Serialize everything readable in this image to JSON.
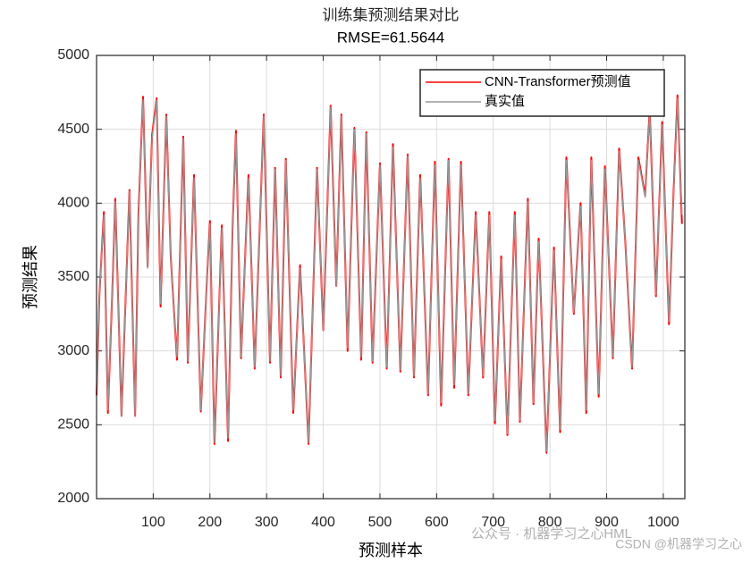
{
  "chart_data": {
    "type": "line",
    "title": "训练集预测结果对比",
    "subtitle": "RMSE=61.5644",
    "xlabel": "预测样本",
    "ylabel": "预测结果",
    "x": [
      0,
      5,
      13,
      20,
      28,
      33,
      44,
      58,
      68,
      74,
      82,
      90,
      98,
      106,
      113,
      123,
      131,
      142,
      153,
      161,
      172,
      184,
      195,
      200,
      208,
      221,
      232,
      240,
      246,
      255,
      268,
      279,
      295,
      306,
      315,
      325,
      334,
      347,
      359,
      374,
      389,
      400,
      413,
      423,
      432,
      443,
      455,
      467,
      476,
      487,
      500,
      512,
      523,
      536,
      549,
      560,
      571,
      585,
      597,
      608,
      621,
      631,
      643,
      656,
      669,
      682,
      693,
      703,
      714,
      725,
      738,
      747,
      761,
      771,
      780,
      794,
      807,
      818,
      829,
      842,
      854,
      864,
      873,
      886,
      897,
      911,
      922,
      933,
      945,
      956,
      968,
      976,
      987,
      998,
      1010,
      1018,
      1025,
      1033
    ],
    "series": [
      {
        "name": "CNN-Transformer预测值",
        "color": "#ff0000",
        "values": [
          2700,
          3380,
          3940,
          2580,
          3420,
          4030,
          2560,
          4090,
          2560,
          3940,
          4720,
          3570,
          4460,
          4710,
          3300,
          4600,
          3630,
          2940,
          4450,
          2920,
          4190,
          2590,
          3500,
          3880,
          2370,
          3850,
          2390,
          3820,
          4490,
          2950,
          4190,
          2880,
          4600,
          2920,
          4240,
          2820,
          4300,
          2580,
          3580,
          2370,
          4240,
          3140,
          4660,
          3440,
          4600,
          3000,
          4510,
          2940,
          4480,
          2920,
          4270,
          2880,
          4400,
          2860,
          4330,
          2820,
          4190,
          2700,
          4280,
          2630,
          4300,
          2750,
          4280,
          2700,
          3940,
          2820,
          3940,
          2510,
          3640,
          2430,
          3940,
          2520,
          4030,
          2640,
          3760,
          2310,
          3700,
          2450,
          4310,
          3250,
          4000,
          2580,
          4310,
          2690,
          4250,
          2950,
          4370,
          3740,
          2880,
          4310,
          4050,
          4640,
          3370,
          4550,
          3180,
          4060,
          4730,
          3860
        ]
      },
      {
        "name": "真实值",
        "color": "#999999",
        "values": [
          2710,
          3380,
          3920,
          2600,
          3440,
          4010,
          2560,
          4080,
          2560,
          3920,
          4700,
          3560,
          4440,
          4700,
          3320,
          4590,
          3620,
          2960,
          4440,
          2930,
          4170,
          2600,
          3500,
          3860,
          2380,
          3830,
          2410,
          3800,
          4470,
          2960,
          4170,
          2890,
          4590,
          2930,
          4230,
          2830,
          4290,
          2600,
          3560,
          2380,
          4230,
          3140,
          4650,
          3440,
          4590,
          3020,
          4500,
          2960,
          4470,
          2930,
          4260,
          2890,
          4380,
          2870,
          4320,
          2830,
          4170,
          2710,
          4260,
          2650,
          4290,
          2770,
          4260,
          2710,
          3920,
          2830,
          3920,
          2530,
          3620,
          2440,
          3920,
          2530,
          4010,
          2650,
          3740,
          2320,
          3680,
          2470,
          4290,
          3260,
          3980,
          2600,
          4290,
          2710,
          4230,
          2960,
          4350,
          3740,
          2890,
          4290,
          4040,
          4620,
          3380,
          4530,
          3200,
          4040,
          4710,
          3920
        ]
      }
    ],
    "xlim": [
      0,
      1038
    ],
    "ylim": [
      2000,
      5000
    ],
    "xticks": [
      100,
      200,
      300,
      400,
      500,
      600,
      700,
      800,
      900,
      1000
    ],
    "yticks": [
      2000,
      2500,
      3000,
      3500,
      4000,
      4500,
      5000
    ],
    "grid": true,
    "legend": "upper right",
    "watermarks": [
      "公众号 · 机器学习之心HML",
      "CSDN @机器学习之心"
    ]
  }
}
